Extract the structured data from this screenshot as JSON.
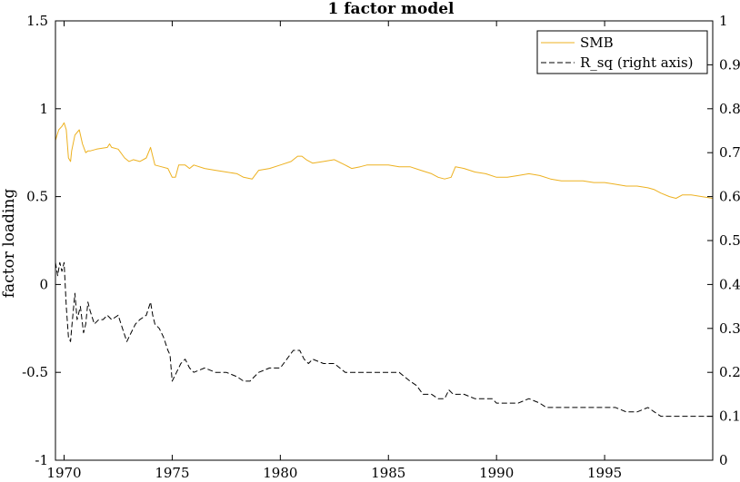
{
  "chart_data": {
    "type": "line",
    "title": "1 factor model",
    "xlabel": "",
    "ylabel": "factor loading",
    "y2label": "",
    "xlim": [
      1969.6,
      2000.0
    ],
    "ylim": [
      -1,
      1.5
    ],
    "y2lim": [
      0,
      1
    ],
    "xticks": [
      1970,
      1975,
      1980,
      1985,
      1990,
      1995
    ],
    "yticks": [
      -1,
      -0.5,
      0,
      0.5,
      1,
      1.5
    ],
    "y2ticks": [
      0,
      0.1,
      0.2,
      0.3,
      0.4,
      0.5,
      0.6,
      0.7,
      0.8,
      0.9,
      1
    ],
    "legend_location": "top-right",
    "grid": false,
    "series": [
      {
        "name": "SMB",
        "axis": "left",
        "color": "#EDB120",
        "style": "solid",
        "x": [
          1969.6,
          1969.75,
          1969.9,
          1970.0,
          1970.1,
          1970.2,
          1970.3,
          1970.35,
          1970.5,
          1970.7,
          1970.85,
          1971.0,
          1971.1,
          1971.2,
          1971.5,
          1972.0,
          1972.1,
          1972.2,
          1972.5,
          1972.8,
          1973.0,
          1973.2,
          1973.5,
          1973.8,
          1974.0,
          1974.1,
          1974.2,
          1974.5,
          1974.8,
          1975.0,
          1975.15,
          1975.3,
          1975.6,
          1975.8,
          1976.0,
          1976.5,
          1977.0,
          1977.5,
          1978.0,
          1978.3,
          1978.7,
          1979.0,
          1979.5,
          1980.0,
          1980.5,
          1980.8,
          1981.0,
          1981.2,
          1981.5,
          1982.0,
          1982.5,
          1983.0,
          1983.3,
          1983.7,
          1984.0,
          1984.5,
          1985.0,
          1985.5,
          1986.0,
          1986.5,
          1987.0,
          1987.3,
          1987.6,
          1987.9,
          1988.1,
          1988.5,
          1989.0,
          1989.5,
          1990.0,
          1990.5,
          1991.0,
          1991.5,
          1992.0,
          1992.5,
          1993.0,
          1993.5,
          1994.0,
          1994.5,
          1995.0,
          1995.5,
          1996.0,
          1996.5,
          1997.0,
          1997.3,
          1997.6,
          1998.0,
          1998.3,
          1998.6,
          1999.0,
          1999.5,
          2000.0
        ],
        "values": [
          0.82,
          0.88,
          0.9,
          0.92,
          0.88,
          0.72,
          0.7,
          0.76,
          0.85,
          0.88,
          0.8,
          0.75,
          0.76,
          0.76,
          0.77,
          0.78,
          0.8,
          0.78,
          0.77,
          0.72,
          0.7,
          0.71,
          0.7,
          0.72,
          0.78,
          0.73,
          0.68,
          0.67,
          0.66,
          0.61,
          0.61,
          0.68,
          0.68,
          0.66,
          0.68,
          0.66,
          0.65,
          0.64,
          0.63,
          0.61,
          0.6,
          0.65,
          0.66,
          0.68,
          0.7,
          0.73,
          0.73,
          0.71,
          0.69,
          0.7,
          0.71,
          0.68,
          0.66,
          0.67,
          0.68,
          0.68,
          0.68,
          0.67,
          0.67,
          0.65,
          0.63,
          0.61,
          0.6,
          0.61,
          0.67,
          0.66,
          0.64,
          0.63,
          0.61,
          0.61,
          0.62,
          0.63,
          0.62,
          0.6,
          0.59,
          0.59,
          0.59,
          0.58,
          0.58,
          0.57,
          0.56,
          0.56,
          0.55,
          0.54,
          0.52,
          0.5,
          0.49,
          0.51,
          0.51,
          0.5,
          0.49
        ]
      },
      {
        "name": "R_sq (right axis)",
        "axis": "right",
        "color": "#000000",
        "style": "dashed",
        "x": [
          1969.6,
          1969.7,
          1969.8,
          1969.9,
          1970.0,
          1970.1,
          1970.2,
          1970.3,
          1970.35,
          1970.5,
          1970.6,
          1970.75,
          1970.9,
          1971.0,
          1971.1,
          1971.2,
          1971.4,
          1971.6,
          1971.8,
          1972.0,
          1972.2,
          1972.5,
          1972.7,
          1972.9,
          1973.1,
          1973.3,
          1973.5,
          1973.8,
          1974.0,
          1974.1,
          1974.2,
          1974.4,
          1974.6,
          1974.8,
          1974.9,
          1975.0,
          1975.2,
          1975.4,
          1975.6,
          1975.8,
          1976.0,
          1976.5,
          1977.0,
          1977.5,
          1978.0,
          1978.3,
          1978.6,
          1978.8,
          1979.0,
          1979.5,
          1980.0,
          1980.3,
          1980.6,
          1980.9,
          1981.1,
          1981.3,
          1981.5,
          1982.0,
          1982.5,
          1983.0,
          1983.2,
          1983.6,
          1984.0,
          1984.5,
          1985.0,
          1985.5,
          1986.0,
          1986.3,
          1986.6,
          1987.0,
          1987.3,
          1987.6,
          1987.8,
          1988.0,
          1988.2,
          1988.5,
          1989.0,
          1989.5,
          1989.8,
          1990.0,
          1990.5,
          1991.0,
          1991.5,
          1992.0,
          1992.3,
          1992.6,
          1993.0,
          1993.5,
          1994.0,
          1994.5,
          1995.0,
          1995.5,
          1996.0,
          1996.5,
          1997.0,
          1997.3,
          1997.6,
          1998.0,
          1998.5,
          1999.0,
          1999.3,
          1999.6,
          2000.0
        ],
        "values": [
          0.45,
          0.42,
          0.45,
          0.43,
          0.45,
          0.35,
          0.28,
          0.27,
          0.3,
          0.38,
          0.32,
          0.35,
          0.29,
          0.31,
          0.36,
          0.34,
          0.31,
          0.32,
          0.32,
          0.33,
          0.32,
          0.33,
          0.3,
          0.27,
          0.29,
          0.31,
          0.32,
          0.33,
          0.36,
          0.33,
          0.31,
          0.3,
          0.28,
          0.25,
          0.24,
          0.18,
          0.2,
          0.22,
          0.23,
          0.21,
          0.2,
          0.21,
          0.2,
          0.2,
          0.19,
          0.18,
          0.18,
          0.19,
          0.2,
          0.21,
          0.21,
          0.23,
          0.25,
          0.25,
          0.23,
          0.22,
          0.23,
          0.22,
          0.22,
          0.2,
          0.2,
          0.2,
          0.2,
          0.2,
          0.2,
          0.2,
          0.18,
          0.17,
          0.15,
          0.15,
          0.14,
          0.14,
          0.16,
          0.15,
          0.15,
          0.15,
          0.14,
          0.14,
          0.14,
          0.13,
          0.13,
          0.13,
          0.14,
          0.13,
          0.12,
          0.12,
          0.12,
          0.12,
          0.12,
          0.12,
          0.12,
          0.12,
          0.11,
          0.11,
          0.12,
          0.11,
          0.1,
          0.1,
          0.1,
          0.1,
          0.1,
          0.1,
          0.1
        ]
      }
    ]
  }
}
